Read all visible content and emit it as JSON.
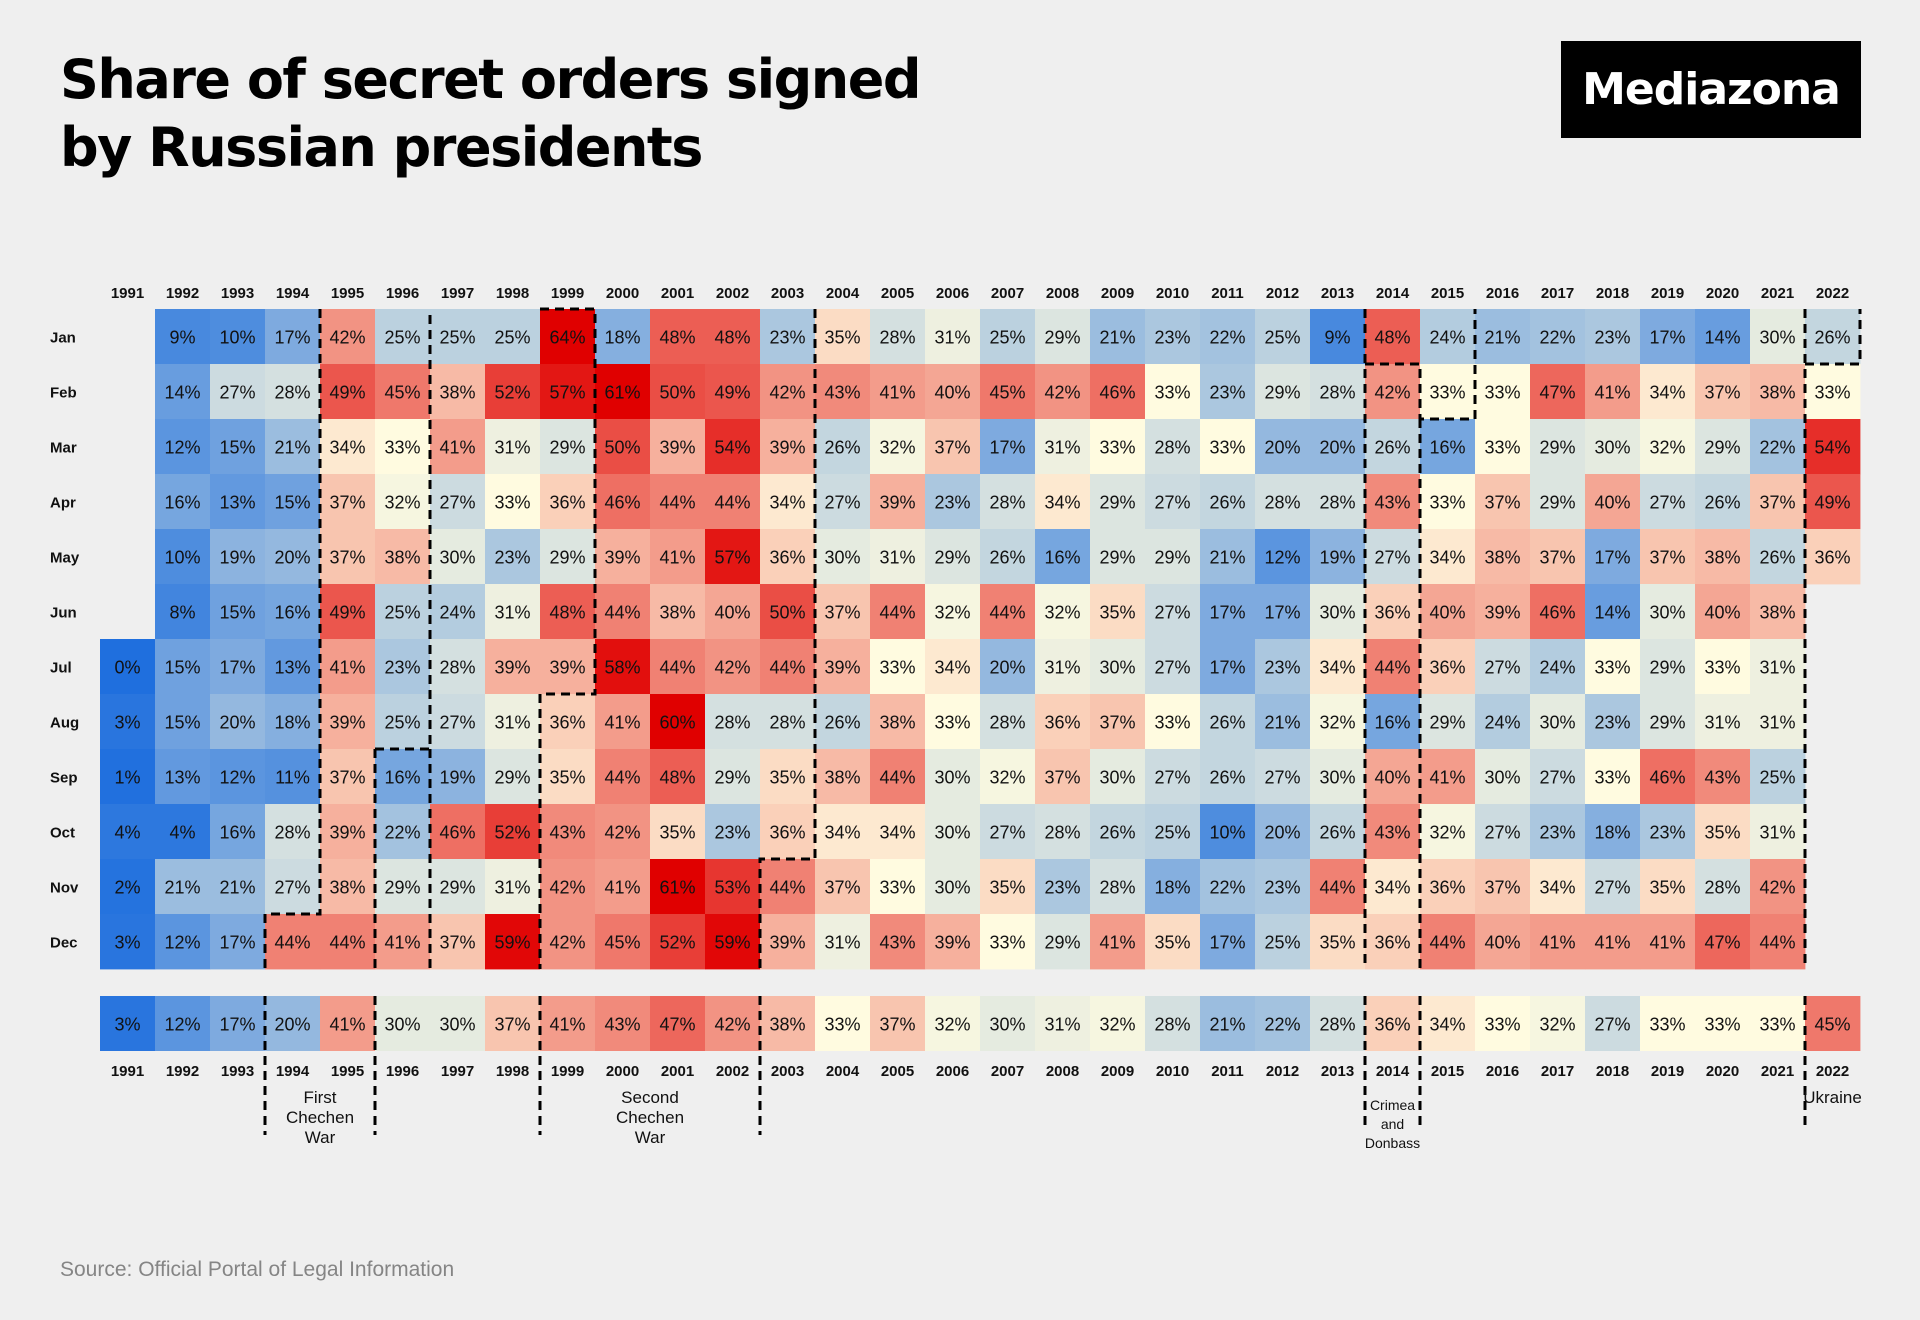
{
  "title_line1": "Share of secret orders signed",
  "title_line2": "by Russian presidents",
  "brand": "Mediazona",
  "source": "Source: Official Portal of Legal Information",
  "chart_data": {
    "type": "heatmap",
    "title": "Share of secret orders signed by Russian presidents",
    "value_unit": "%",
    "years": [
      "1991",
      "1992",
      "1993",
      "1994",
      "1995",
      "1996",
      "1997",
      "1998",
      "1999",
      "2000",
      "2001",
      "2002",
      "2003",
      "2004",
      "2005",
      "2006",
      "2007",
      "2008",
      "2009",
      "2010",
      "2011",
      "2012",
      "2013",
      "2014",
      "2015",
      "2016",
      "2017",
      "2018",
      "2019",
      "2020",
      "2021",
      "2022"
    ],
    "months": [
      "Jan",
      "Feb",
      "Mar",
      "Apr",
      "May",
      "Jun",
      "Jul",
      "Aug",
      "Sep",
      "Oct",
      "Nov",
      "Dec"
    ],
    "values_by_month": [
      [
        null,
        9,
        10,
        17,
        42,
        25,
        25,
        25,
        64,
        18,
        48,
        48,
        23,
        35,
        28,
        31,
        25,
        29,
        21,
        23,
        22,
        25,
        9,
        48,
        24,
        21,
        22,
        23,
        17,
        14,
        30,
        26
      ],
      [
        null,
        14,
        27,
        28,
        49,
        45,
        38,
        52,
        57,
        61,
        50,
        49,
        42,
        43,
        41,
        40,
        45,
        42,
        46,
        33,
        23,
        29,
        28,
        42,
        33,
        33,
        47,
        41,
        34,
        37,
        38,
        33
      ],
      [
        null,
        12,
        15,
        21,
        34,
        33,
        41,
        31,
        29,
        50,
        39,
        54,
        39,
        26,
        32,
        37,
        17,
        31,
        33,
        28,
        33,
        20,
        20,
        26,
        16,
        33,
        29,
        30,
        32,
        29,
        22,
        54
      ],
      [
        null,
        16,
        13,
        15,
        37,
        32,
        27,
        33,
        36,
        46,
        44,
        44,
        34,
        27,
        39,
        23,
        28,
        34,
        29,
        27,
        26,
        28,
        28,
        43,
        33,
        37,
        29,
        40,
        27,
        26,
        37,
        49
      ],
      [
        null,
        10,
        19,
        20,
        37,
        38,
        30,
        23,
        29,
        39,
        41,
        57,
        36,
        30,
        31,
        29,
        26,
        16,
        29,
        29,
        21,
        12,
        19,
        27,
        34,
        38,
        37,
        17,
        37,
        38,
        26,
        36
      ],
      [
        null,
        8,
        15,
        16,
        49,
        25,
        24,
        31,
        48,
        44,
        38,
        40,
        50,
        37,
        44,
        32,
        44,
        32,
        35,
        27,
        17,
        17,
        30,
        36,
        40,
        39,
        46,
        14,
        30,
        40,
        38,
        null
      ],
      [
        0,
        15,
        17,
        13,
        41,
        23,
        28,
        39,
        39,
        58,
        44,
        42,
        44,
        39,
        33,
        34,
        20,
        31,
        30,
        27,
        17,
        23,
        34,
        44,
        36,
        27,
        24,
        33,
        29,
        33,
        31,
        null
      ],
      [
        3,
        15,
        20,
        18,
        39,
        25,
        27,
        31,
        36,
        41,
        60,
        28,
        28,
        26,
        38,
        33,
        28,
        36,
        37,
        33,
        26,
        21,
        32,
        16,
        29,
        24,
        30,
        23,
        29,
        31,
        31,
        null
      ],
      [
        1,
        13,
        12,
        11,
        37,
        16,
        19,
        29,
        35,
        44,
        48,
        29,
        35,
        38,
        44,
        30,
        32,
        37,
        30,
        27,
        26,
        27,
        30,
        40,
        41,
        30,
        27,
        33,
        46,
        43,
        25,
        null
      ],
      [
        4,
        4,
        16,
        28,
        39,
        22,
        46,
        52,
        43,
        42,
        35,
        23,
        36,
        34,
        34,
        30,
        27,
        28,
        26,
        25,
        10,
        20,
        26,
        43,
        32,
        27,
        23,
        18,
        23,
        35,
        31,
        null
      ],
      [
        2,
        21,
        21,
        27,
        38,
        29,
        29,
        31,
        42,
        41,
        61,
        53,
        44,
        37,
        33,
        30,
        35,
        23,
        28,
        18,
        22,
        23,
        44,
        34,
        36,
        37,
        34,
        27,
        35,
        28,
        42,
        null
      ],
      [
        3,
        12,
        17,
        44,
        44,
        41,
        37,
        59,
        42,
        45,
        52,
        59,
        39,
        31,
        43,
        39,
        33,
        29,
        41,
        35,
        17,
        25,
        35,
        36,
        44,
        40,
        41,
        41,
        41,
        47,
        44,
        null
      ]
    ],
    "annual_values": [
      3,
      12,
      17,
      20,
      41,
      30,
      30,
      37,
      41,
      43,
      47,
      42,
      38,
      33,
      37,
      32,
      30,
      31,
      32,
      28,
      21,
      22,
      28,
      36,
      34,
      33,
      32,
      27,
      33,
      33,
      33,
      45
    ],
    "color_scale": {
      "low": "#1f6fde",
      "mid": "#fffbe0",
      "high": "#e00000",
      "midpoint": 33
    },
    "annotations": [
      {
        "lines": [
          "First",
          "Chechen",
          "War"
        ],
        "from_year": "1994",
        "to_year": "1996"
      },
      {
        "lines": [
          "Second",
          "Chechen",
          "War"
        ],
        "from_year": "1999",
        "to_year": "2003"
      },
      {
        "lines": [
          "Crimea",
          "and",
          "Donbass"
        ],
        "from_year": "2014",
        "to_year": "2015"
      },
      {
        "lines": [
          "Ukraine"
        ],
        "from_year": "2022",
        "to_year": "2022"
      }
    ],
    "legend": "none",
    "grid": false
  }
}
